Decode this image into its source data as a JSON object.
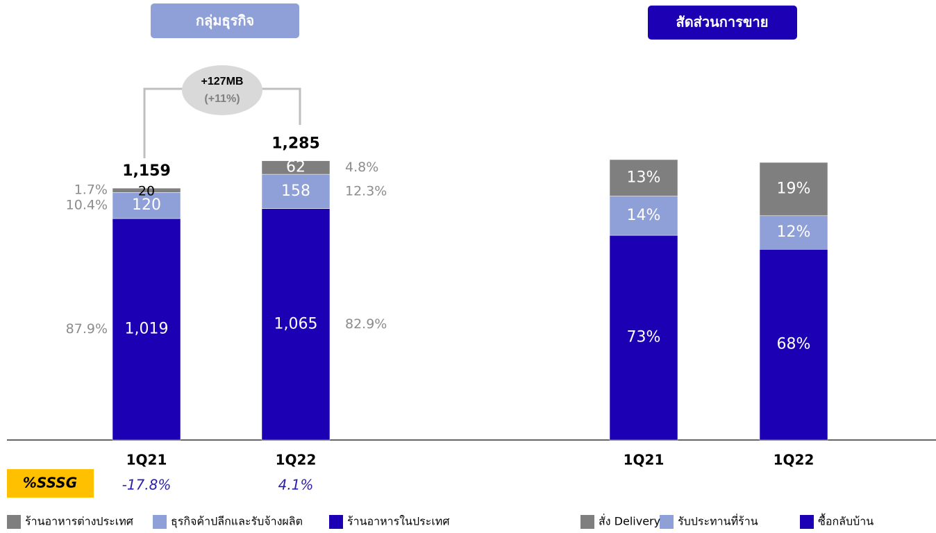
{
  "chart_data": [
    {
      "type": "stacked_bar",
      "title": "กลุ่มธุรกิจ",
      "categories": [
        "1Q21",
        "1Q22"
      ],
      "ylim": [
        0,
        1450
      ],
      "series": [
        {
          "name": "ร้านอาหารในประเทศ",
          "color": "#1c00b4",
          "values": [
            1019,
            1065
          ],
          "value_labels": [
            "1,019",
            "1,065"
          ],
          "shares": [
            87.9,
            82.9
          ],
          "share_labels": [
            "87.9%",
            "82.9%"
          ]
        },
        {
          "name": "ธุรกิจค้าปลีกและรับจ้างผลิต",
          "color": "#8fa0d8",
          "values": [
            120,
            158
          ],
          "shares": [
            10.4,
            12.3
          ],
          "share_labels": [
            "10.4%",
            "12.3%"
          ]
        },
        {
          "name": "ร้านอาหารต่างประเทศ",
          "color": "#7f7f7f",
          "values": [
            20,
            62
          ],
          "shares": [
            1.7,
            4.8
          ],
          "share_labels": [
            "1.7%",
            "4.8%"
          ]
        }
      ],
      "totals": [
        1159,
        1285
      ],
      "total_labels": [
        "1,159",
        "1,285"
      ],
      "annotation": {
        "change": "+127MB",
        "percent": "(+11%)"
      },
      "sssg": {
        "label": "%SSSG",
        "values": [
          -17.8,
          4.1
        ],
        "value_labels": [
          "-17.8%",
          "4.1%"
        ]
      }
    },
    {
      "type": "stacked_bar",
      "title": "สัดส่วนการขาย",
      "categories": [
        "1Q21",
        "1Q22"
      ],
      "ylim": [
        0,
        100
      ],
      "series": [
        {
          "name": "ซื้อกลับบ้าน",
          "color": "#1c00b4",
          "values": [
            73,
            68
          ],
          "value_labels": [
            "73%",
            "68%"
          ]
        },
        {
          "name": "รับประทานที่ร้าน",
          "color": "#8fa0d8",
          "values": [
            14,
            12
          ],
          "value_labels": [
            "14%",
            "12%"
          ]
        },
        {
          "name": "สั่ง Delivery",
          "color": "#7f7f7f",
          "values": [
            13,
            19
          ],
          "value_labels": [
            "13%",
            "19%"
          ]
        }
      ]
    }
  ]
}
